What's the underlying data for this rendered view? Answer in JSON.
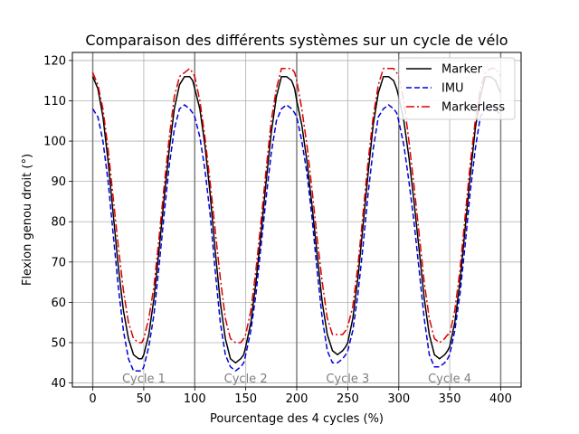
{
  "chart_data": {
    "type": "line",
    "title": "Comparaison des différents systèmes sur un cycle de vélo",
    "xlabel": "Pourcentage des 4 cycles (%)",
    "ylabel": "Flexion genou droit (°)",
    "xlim": [
      -20,
      420
    ],
    "ylim": [
      39,
      122
    ],
    "xticks": [
      0,
      50,
      100,
      150,
      200,
      250,
      300,
      350,
      400
    ],
    "yticks": [
      40,
      50,
      60,
      70,
      80,
      90,
      100,
      110,
      120
    ],
    "grid": true,
    "legend_position": "top-right",
    "cycle_boundaries": [
      0,
      100,
      200,
      300,
      400
    ],
    "cycle_labels": [
      {
        "text": "Cycle 1",
        "x": 50
      },
      {
        "text": "Cycle 2",
        "x": 150
      },
      {
        "text": "Cycle 3",
        "x": 250
      },
      {
        "text": "Cycle 4",
        "x": 350
      }
    ],
    "x": [
      0,
      5,
      10,
      15,
      20,
      25,
      30,
      35,
      40,
      45,
      48,
      50,
      55,
      60,
      65,
      70,
      75,
      80,
      85,
      90,
      95,
      98,
      100,
      105,
      110,
      115,
      120,
      125,
      130,
      135,
      140,
      145,
      148,
      150,
      155,
      160,
      165,
      170,
      175,
      180,
      185,
      190,
      195,
      198,
      200,
      205,
      210,
      215,
      220,
      225,
      230,
      235,
      240,
      245,
      248,
      250,
      255,
      260,
      265,
      270,
      275,
      280,
      285,
      290,
      295,
      298,
      300,
      305,
      310,
      315,
      320,
      325,
      330,
      335,
      340,
      345,
      348,
      350,
      355,
      360,
      365,
      370,
      375,
      380,
      385,
      390,
      395,
      398,
      400
    ],
    "series": [
      {
        "name": "Marker",
        "color": "#000000",
        "dash": "solid",
        "values": [
          116,
          113,
          106,
          95,
          82,
          69,
          58,
          51,
          47,
          46,
          46,
          47,
          52,
          61,
          73,
          86,
          98,
          108,
          114,
          116,
          116,
          115,
          113,
          108,
          99,
          87,
          73,
          60,
          51,
          46,
          45,
          46,
          47,
          49,
          55,
          65,
          77,
          90,
          102,
          111,
          116,
          116,
          115,
          113,
          110,
          104,
          95,
          84,
          72,
          60,
          52,
          48,
          47,
          48,
          49,
          50,
          56,
          66,
          79,
          92,
          104,
          112,
          116,
          116,
          115,
          113,
          111,
          105,
          96,
          85,
          73,
          61,
          52,
          47,
          46,
          47,
          48,
          49,
          55,
          65,
          78,
          91,
          103,
          111,
          116,
          116,
          115,
          113,
          112
        ]
      },
      {
        "name": "IMU",
        "color": "#0000dd",
        "dash": "dashed",
        "values": [
          108,
          106,
          100,
          90,
          77,
          64,
          53,
          46,
          43,
          43,
          43,
          44,
          49,
          57,
          69,
          82,
          94,
          103,
          108,
          109,
          108,
          107,
          106,
          101,
          93,
          82,
          68,
          55,
          47,
          44,
          43,
          44,
          45,
          47,
          53,
          62,
          74,
          86,
          97,
          105,
          108,
          109,
          108,
          107,
          106,
          100,
          92,
          81,
          68,
          56,
          48,
          45,
          45,
          46,
          47,
          48,
          53,
          62,
          74,
          87,
          98,
          106,
          108,
          109,
          108,
          107,
          105,
          99,
          90,
          80,
          68,
          56,
          47,
          44,
          44,
          45,
          46,
          47,
          53,
          62,
          74,
          87,
          98,
          106,
          108,
          109,
          108,
          107,
          106
        ]
      },
      {
        "name": "Markerless",
        "color": "#dd0000",
        "dash": "dashdot",
        "values": [
          117,
          114,
          108,
          98,
          86,
          74,
          63,
          55,
          51,
          50,
          50,
          51,
          56,
          64,
          76,
          89,
          101,
          111,
          116,
          117,
          118,
          117,
          116,
          110,
          101,
          90,
          78,
          66,
          56,
          51,
          50,
          50,
          51,
          52,
          58,
          68,
          80,
          93,
          105,
          113,
          118,
          118,
          118,
          117,
          115,
          108,
          99,
          88,
          76,
          65,
          56,
          52,
          52,
          52,
          53,
          54,
          59,
          69,
          82,
          95,
          106,
          114,
          118,
          118,
          118,
          117,
          116,
          110,
          100,
          89,
          77,
          65,
          56,
          51,
          50,
          51,
          52,
          52,
          58,
          68,
          81,
          94,
          105,
          113,
          117,
          118,
          118,
          117,
          116
        ]
      }
    ]
  }
}
